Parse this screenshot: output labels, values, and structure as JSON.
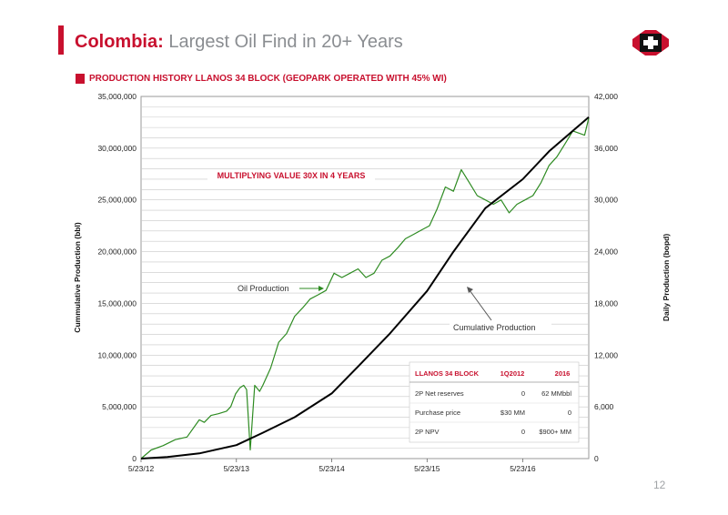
{
  "header": {
    "title_accent": "Colombia:",
    "title_rest": "Largest Oil Find in 20+ Years",
    "subtitle": "PRODUCTION HISTORY LLANOS 34 BLOCK (GEOPARK OPERATED WITH 45% WI)",
    "page_number": "12"
  },
  "chart_data": {
    "type": "line",
    "y_left": {
      "label": "Cummulative Production (bbl)",
      "ticks": [
        "0",
        "5,000,000",
        "10,000,000",
        "15,000,000",
        "20,000,000",
        "25,000,000",
        "30,000,000",
        "35,000,000"
      ],
      "range": [
        0,
        35000000
      ]
    },
    "y_right": {
      "label": "Daily Production (bopd)",
      "ticks": [
        "0",
        "6,000",
        "12,000",
        "18,000",
        "24,000",
        "30,000",
        "36,000",
        "42,000"
      ],
      "range": [
        0,
        42000
      ]
    },
    "x_ticks": [
      "5/23/12",
      "5/23/13",
      "5/23/14",
      "5/23/15",
      "5/23/16"
    ],
    "x_range": [
      "2012-05-23",
      "2017-01-31"
    ],
    "grid": true,
    "banner": "MULTIPLYING VALUE 30X IN 4 YEARS",
    "series": [
      {
        "name": "Oil Production",
        "axis": "right",
        "color": "#2e8b22",
        "x": [
          "2012-05-23",
          "2012-07-01",
          "2012-08-15",
          "2012-10-01",
          "2012-11-15",
          "2013-01-01",
          "2013-01-20",
          "2013-02-15",
          "2013-03-15",
          "2013-04-15",
          "2013-05-01",
          "2013-05-20",
          "2013-06-05",
          "2013-06-20",
          "2013-07-01",
          "2013-07-15",
          "2013-08-01",
          "2013-08-20",
          "2013-09-01",
          "2013-10-01",
          "2013-11-01",
          "2013-12-01",
          "2014-01-01",
          "2014-02-01",
          "2014-03-01",
          "2014-04-01",
          "2014-05-01",
          "2014-06-01",
          "2014-07-01",
          "2014-08-01",
          "2014-09-01",
          "2014-10-01",
          "2014-11-01",
          "2014-12-01",
          "2015-01-01",
          "2015-02-01",
          "2015-03-01",
          "2015-04-01",
          "2015-05-01",
          "2015-06-01",
          "2015-07-01",
          "2015-08-01",
          "2015-09-01",
          "2015-10-01",
          "2015-11-01",
          "2015-12-01",
          "2016-01-01",
          "2016-02-01",
          "2016-03-01",
          "2016-04-01",
          "2016-05-01",
          "2016-06-01",
          "2016-07-01",
          "2016-08-01",
          "2016-09-01",
          "2016-10-01",
          "2016-11-01",
          "2016-12-01",
          "2017-01-15",
          "2017-01-31"
        ],
        "values": [
          0,
          1000,
          1500,
          2200,
          2500,
          4500,
          4200,
          5000,
          5200,
          5500,
          6000,
          7500,
          8200,
          8500,
          8000,
          1000,
          8500,
          7800,
          8500,
          10500,
          13500,
          14500,
          16500,
          17500,
          18500,
          19000,
          19500,
          21500,
          21000,
          21500,
          22000,
          21000,
          21500,
          23000,
          23500,
          24500,
          25500,
          26000,
          26500,
          27000,
          29000,
          31500,
          31000,
          33500,
          32000,
          30500,
          30000,
          29500,
          30000,
          28500,
          29500,
          30000,
          30500,
          32000,
          34000,
          35000,
          36500,
          38000,
          37500,
          39500
        ]
      },
      {
        "name": "Cumulative Production",
        "axis": "left",
        "color": "#000000",
        "x": [
          "2012-05-23",
          "2012-09-01",
          "2013-01-01",
          "2013-05-23",
          "2013-09-01",
          "2014-01-01",
          "2014-05-23",
          "2014-09-01",
          "2015-01-01",
          "2015-05-23",
          "2015-09-01",
          "2016-01-01",
          "2016-05-23",
          "2016-09-01",
          "2017-01-31"
        ],
        "values": [
          0,
          150000,
          500000,
          1300000,
          2500000,
          4000000,
          6300000,
          8900000,
          12100000,
          16200000,
          20000000,
          24200000,
          27000000,
          29700000,
          33000000
        ]
      }
    ]
  },
  "annotations": {
    "oil_label": "Oil Production",
    "cum_label": "Cumulative Production"
  },
  "table": {
    "headers": [
      "LLANOS 34 BLOCK",
      "1Q2012",
      "2016"
    ],
    "rows": [
      [
        "2P Net reserves",
        "0",
        "62 MMbbl"
      ],
      [
        "Purchase price",
        "$30 MM",
        "0"
      ],
      [
        "2P NPV",
        "0",
        "$900+ MM"
      ]
    ]
  }
}
